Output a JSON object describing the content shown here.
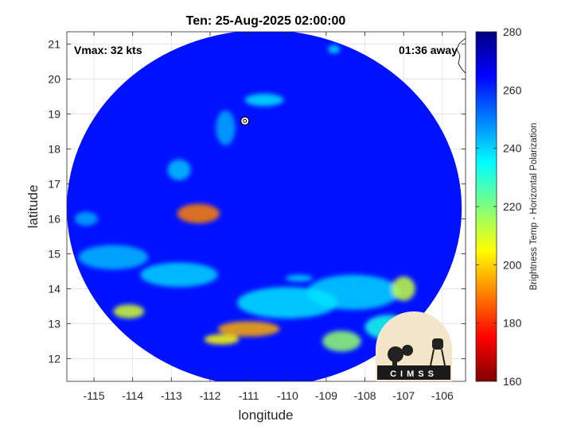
{
  "chart_data": {
    "type": "heatmap",
    "title": "Ten: 25-Aug-2025 02:00:00",
    "xlabel": "longitude",
    "ylabel": "latitude",
    "xlim": [
      -115.7,
      -105.4
    ],
    "ylim": [
      11.35,
      21.35
    ],
    "x_ticks": [
      -115,
      -114,
      -113,
      -112,
      -111,
      -110,
      -109,
      -108,
      -107,
      -106
    ],
    "y_ticks": [
      12,
      13,
      14,
      15,
      16,
      17,
      18,
      19,
      20,
      21
    ],
    "grid": true,
    "annotations": {
      "vmax": "Vmax: 32 kts",
      "away": "01:36 away"
    },
    "colorbar": {
      "label": "Brightness Temp - Horizontal Polarization",
      "range": [
        160,
        280
      ],
      "ticks": [
        160,
        180,
        200,
        220,
        240,
        260,
        280
      ],
      "colormap": "jet",
      "placement": "right"
    },
    "swath": {
      "center": [
        -110.6,
        16.3
      ],
      "radius_deg": 5.1,
      "background_value": 263
    },
    "features": [
      {
        "lon": -112.3,
        "lat": 16.15,
        "value": 190,
        "rx": 0.55,
        "ry": 0.28
      },
      {
        "lon": -111.0,
        "lat": 12.85,
        "value": 195,
        "rx": 0.8,
        "ry": 0.22
      },
      {
        "lon": -111.7,
        "lat": 12.55,
        "value": 205,
        "rx": 0.45,
        "ry": 0.15
      },
      {
        "lon": -107.0,
        "lat": 14.0,
        "value": 212,
        "rx": 0.3,
        "ry": 0.35
      },
      {
        "lon": -114.1,
        "lat": 13.35,
        "value": 210,
        "rx": 0.4,
        "ry": 0.2
      },
      {
        "lon": -108.6,
        "lat": 12.5,
        "value": 218,
        "rx": 0.5,
        "ry": 0.3
      },
      {
        "lon": -110.0,
        "lat": 13.6,
        "value": 238,
        "rx": 1.3,
        "ry": 0.45
      },
      {
        "lon": -108.3,
        "lat": 13.9,
        "value": 240,
        "rx": 1.2,
        "ry": 0.5
      },
      {
        "lon": -112.8,
        "lat": 14.4,
        "value": 240,
        "rx": 1.0,
        "ry": 0.35
      },
      {
        "lon": -114.5,
        "lat": 14.9,
        "value": 243,
        "rx": 0.9,
        "ry": 0.35
      },
      {
        "lon": -110.6,
        "lat": 19.4,
        "value": 238,
        "rx": 0.5,
        "ry": 0.18
      },
      {
        "lon": -111.6,
        "lat": 18.6,
        "value": 245,
        "rx": 0.25,
        "ry": 0.5
      },
      {
        "lon": -112.8,
        "lat": 17.4,
        "value": 242,
        "rx": 0.3,
        "ry": 0.3
      },
      {
        "lon": -115.2,
        "lat": 16.0,
        "value": 245,
        "rx": 0.3,
        "ry": 0.2
      },
      {
        "lon": -109.7,
        "lat": 14.3,
        "value": 240,
        "rx": 0.35,
        "ry": 0.1
      },
      {
        "lon": -108.8,
        "lat": 20.85,
        "value": 238,
        "rx": 0.15,
        "ry": 0.12
      },
      {
        "lon": -107.4,
        "lat": 12.9,
        "value": 232,
        "rx": 0.6,
        "ry": 0.35
      }
    ],
    "storm_center": {
      "lon": -111.1,
      "lat": 18.8
    }
  },
  "logo": {
    "text": "CIMSS"
  }
}
